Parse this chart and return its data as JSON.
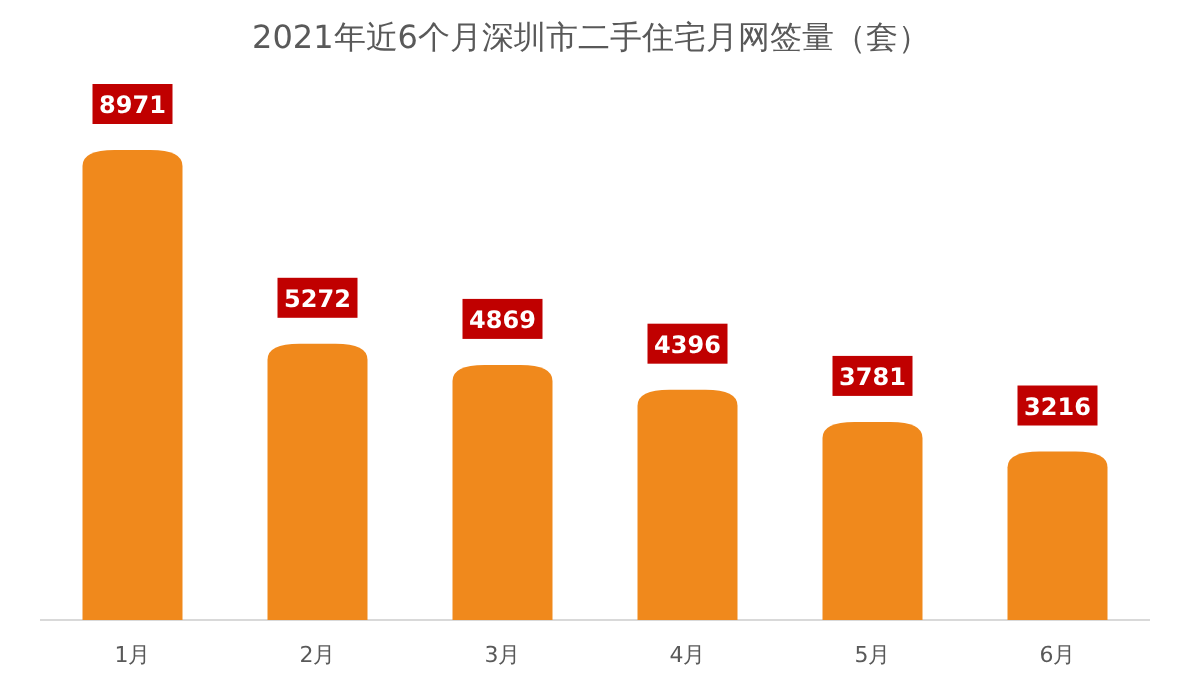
{
  "chart_data": {
    "type": "bar",
    "title": "2021年近6个月深圳市二手住宅月网签量（套）",
    "categories": [
      "1月",
      "2月",
      "3月",
      "4月",
      "5月",
      "6月"
    ],
    "values": [
      8971,
      5272,
      4869,
      4396,
      3781,
      3216
    ],
    "color": "#f0891c",
    "data_labels": true
  }
}
